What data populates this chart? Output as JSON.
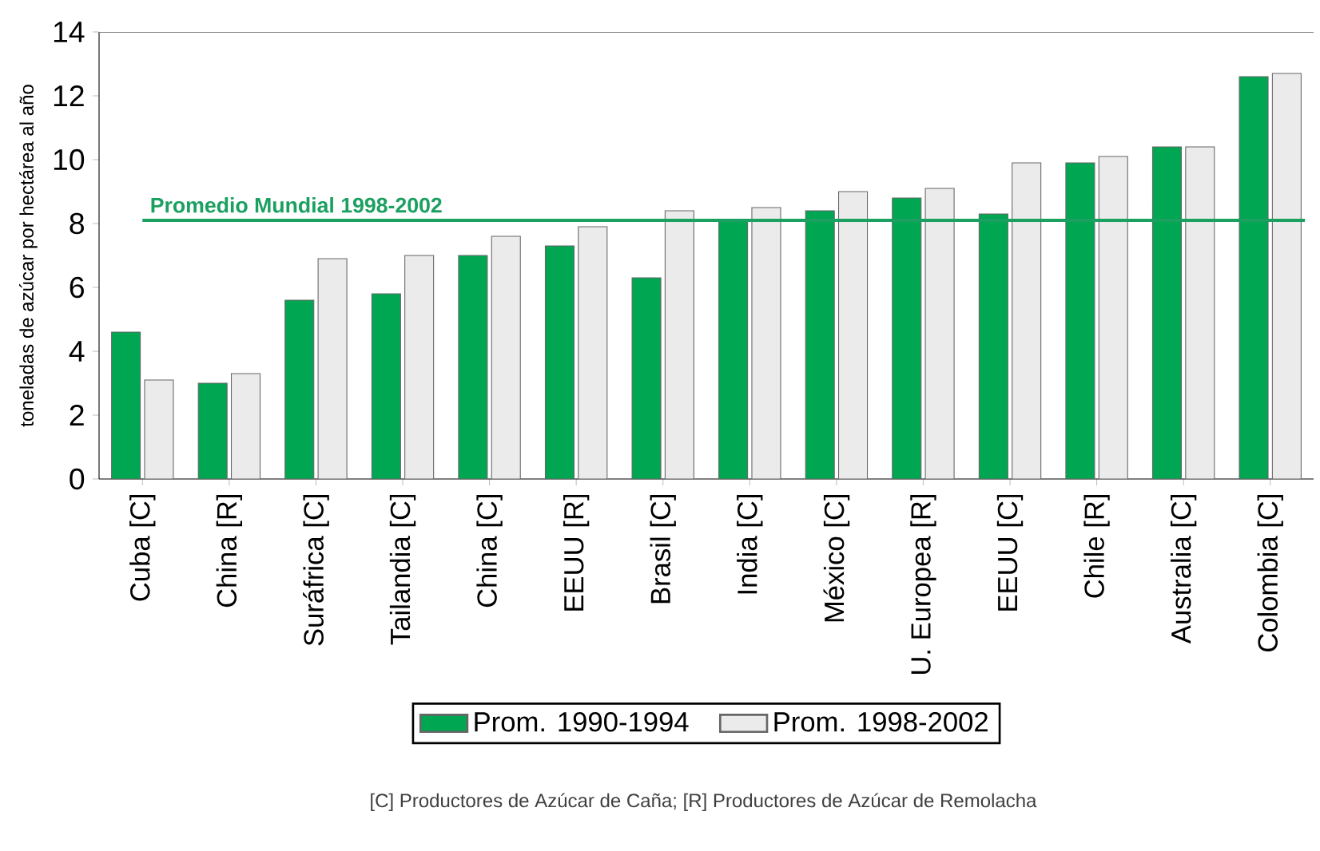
{
  "chart_data": {
    "type": "bar",
    "ylabel": "toneladas de azúcar por hectárea al año",
    "categories": [
      "Cuba [C]",
      "China [R]",
      "Suráfrica [C]",
      "Tailandia [C]",
      "China [C]",
      "EEUU [R]",
      "Brasil [C]",
      "India [C]",
      "México [C]",
      "U. Europea [R]",
      "EEUU [C]",
      "Chile [R]",
      "Australia [C]",
      "Colombia [C]"
    ],
    "series": [
      {
        "name": "Prom. 1990-1994",
        "color": "#00a651",
        "values": [
          4.6,
          3.0,
          5.6,
          5.8,
          7.0,
          7.3,
          6.3,
          8.1,
          8.4,
          8.8,
          8.3,
          9.9,
          10.4,
          12.6
        ]
      },
      {
        "name": "Prom. 1998-2002",
        "color": "#ebebeb",
        "values": [
          3.1,
          3.3,
          6.9,
          7.0,
          7.6,
          7.9,
          8.4,
          8.5,
          9.0,
          9.1,
          9.9,
          10.1,
          10.4,
          12.7
        ]
      }
    ],
    "ylim": [
      0,
      14
    ],
    "yticks": [
      0,
      2,
      4,
      6,
      8,
      10,
      12,
      14
    ],
    "ref_lines": [
      {
        "axis": "y",
        "value": 8.1,
        "label": "Promedio Mundial 1998-2002",
        "color": "#1aa060"
      }
    ],
    "legend": "bottom",
    "annotations": [
      "[C] Productores de Azúcar de Caña; [R] Productores de Azúcar de Remolacha"
    ]
  }
}
